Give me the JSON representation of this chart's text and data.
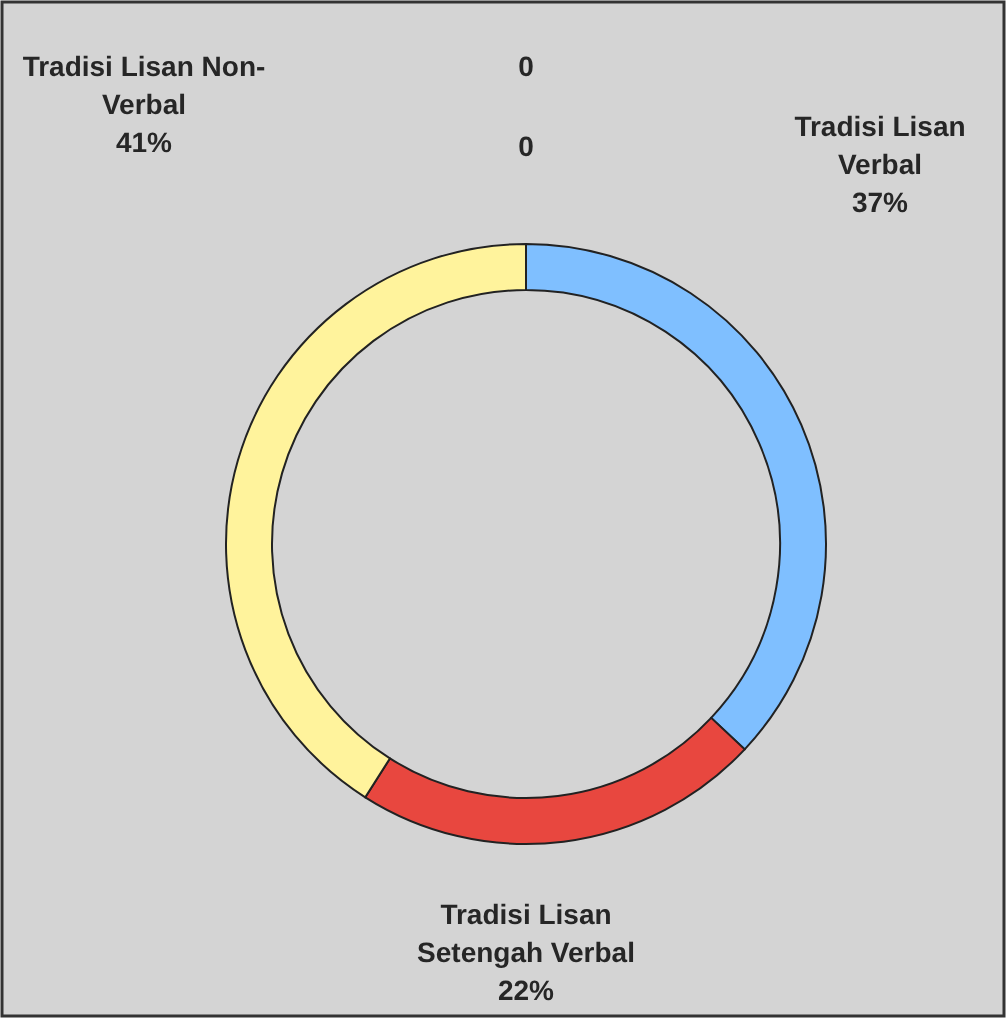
{
  "chart_data": {
    "type": "donut",
    "categories": [
      "Tradisi Lisan Verbal",
      "Tradisi Lisan Setengah Verbal",
      "Tradisi Lisan Non-Verbal",
      null,
      null
    ],
    "values": [
      37,
      22,
      41,
      0,
      0
    ],
    "colors": [
      "#7fbfff",
      "#e8473f",
      "#fff39c",
      "#7fbfff",
      "#e8473f"
    ],
    "value_labels": [
      "37%",
      "22%",
      "41%",
      "0",
      "0"
    ]
  }
}
